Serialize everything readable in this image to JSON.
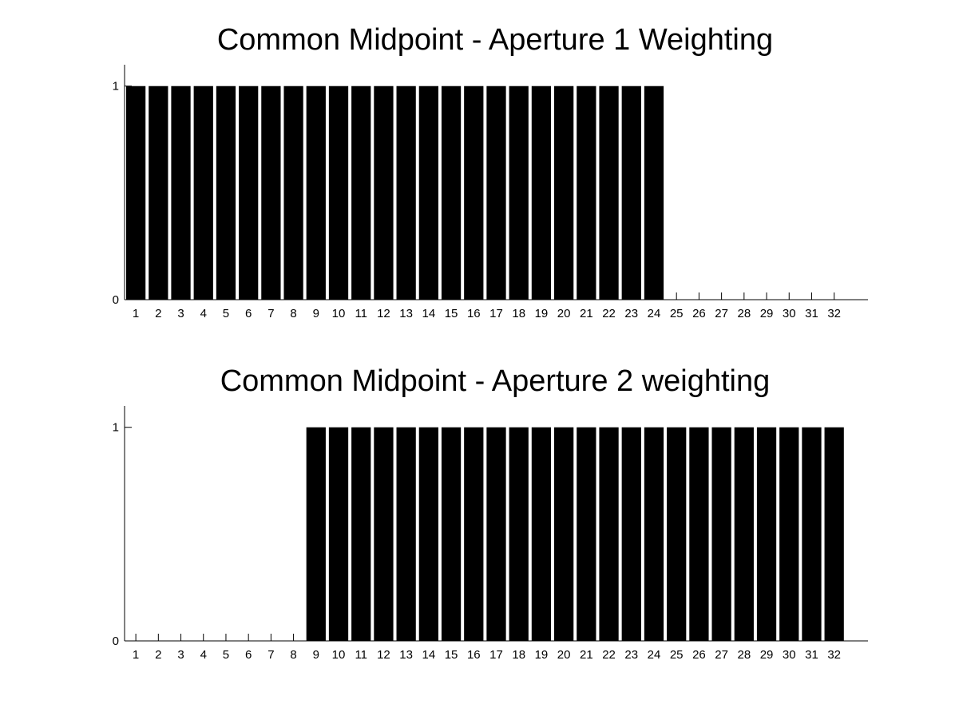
{
  "figure": {
    "background": "#ffffff",
    "bar_color": "#000000",
    "axis_color": "#000000"
  },
  "chart_data": [
    {
      "type": "bar",
      "title": "Common Midpoint - Aperture 1 Weighting",
      "xlabel": "",
      "ylabel": "",
      "categories": [
        "1",
        "2",
        "3",
        "4",
        "5",
        "6",
        "7",
        "8",
        "9",
        "10",
        "11",
        "12",
        "13",
        "14",
        "15",
        "16",
        "17",
        "18",
        "19",
        "20",
        "21",
        "22",
        "23",
        "24",
        "25",
        "26",
        "27",
        "28",
        "29",
        "30",
        "31",
        "32"
      ],
      "values": [
        1,
        1,
        1,
        1,
        1,
        1,
        1,
        1,
        1,
        1,
        1,
        1,
        1,
        1,
        1,
        1,
        1,
        1,
        1,
        1,
        1,
        1,
        1,
        1,
        0,
        0,
        0,
        0,
        0,
        0,
        0,
        0
      ],
      "xlim": [
        0.5,
        33.5
      ],
      "ylim": [
        0,
        1.1
      ],
      "y_ticks": [
        0,
        1
      ],
      "y_tick_labels": [
        "0",
        "1"
      ],
      "grid": false,
      "legend": "none"
    },
    {
      "type": "bar",
      "title": "Common Midpoint - Aperture 2 weighting",
      "xlabel": "",
      "ylabel": "",
      "categories": [
        "1",
        "2",
        "3",
        "4",
        "5",
        "6",
        "7",
        "8",
        "9",
        "10",
        "11",
        "12",
        "13",
        "14",
        "15",
        "16",
        "17",
        "18",
        "19",
        "20",
        "21",
        "22",
        "23",
        "24",
        "25",
        "26",
        "27",
        "28",
        "29",
        "30",
        "31",
        "32"
      ],
      "values": [
        0,
        0,
        0,
        0,
        0,
        0,
        0,
        0,
        1,
        1,
        1,
        1,
        1,
        1,
        1,
        1,
        1,
        1,
        1,
        1,
        1,
        1,
        1,
        1,
        1,
        1,
        1,
        1,
        1,
        1,
        1,
        1
      ],
      "xlim": [
        0.5,
        33.5
      ],
      "ylim": [
        0,
        1.1
      ],
      "y_ticks": [
        0,
        1
      ],
      "y_tick_labels": [
        "0",
        "1"
      ],
      "grid": false,
      "legend": "none"
    }
  ]
}
